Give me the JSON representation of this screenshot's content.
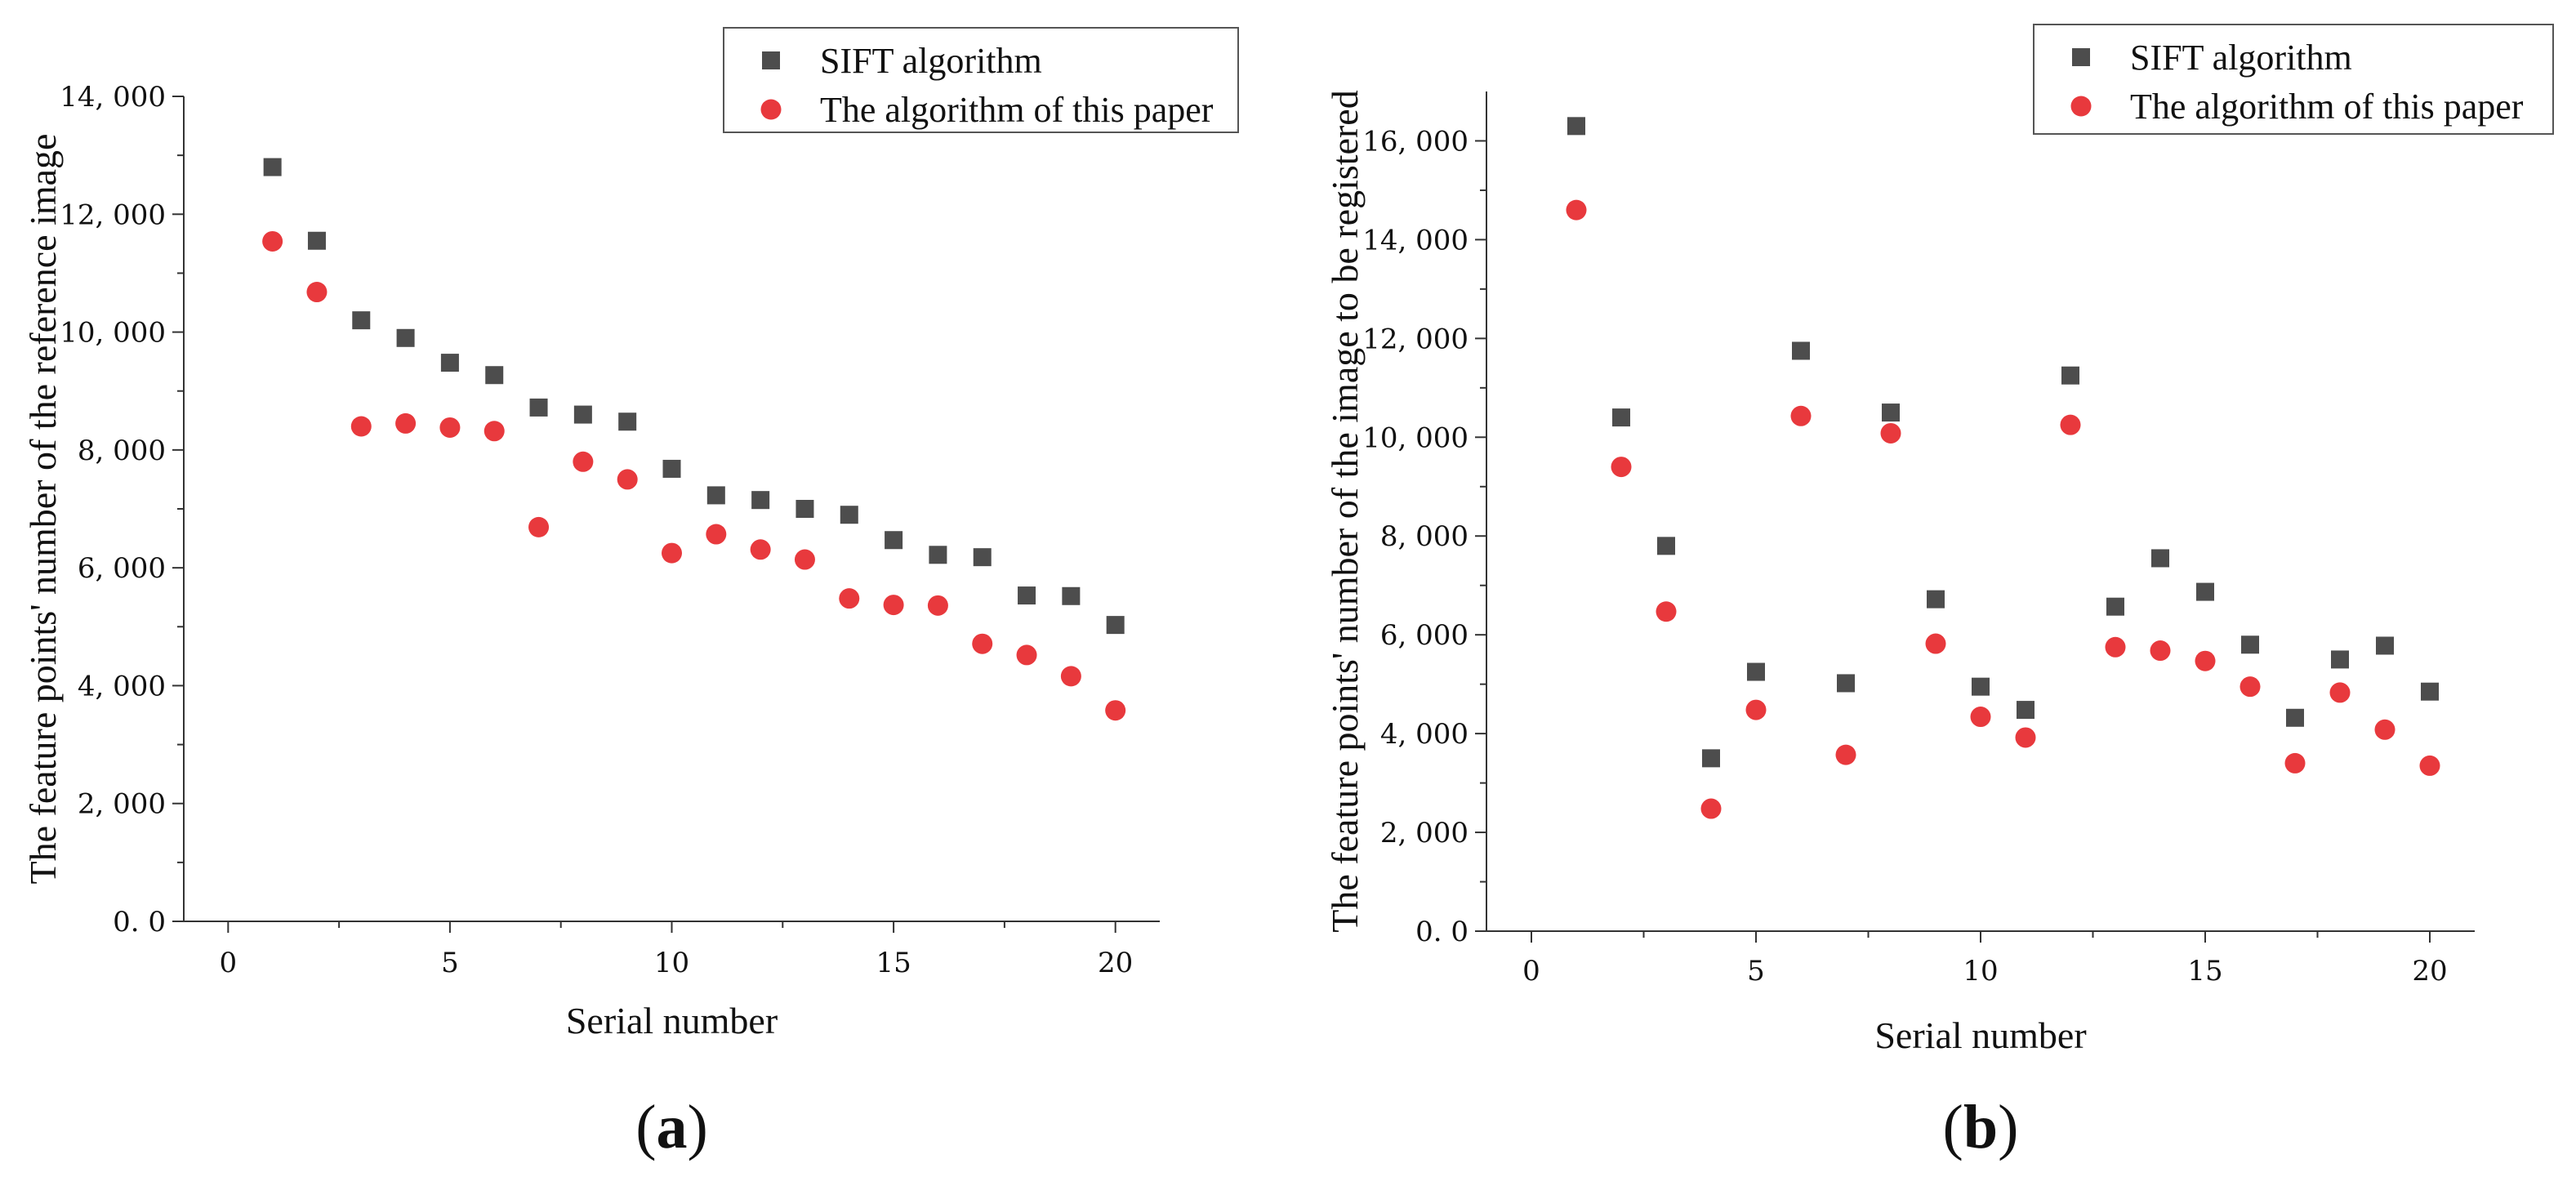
{
  "chart_data": [
    {
      "type": "scatter",
      "panel_label": "a",
      "title": "",
      "xlabel": "Serial number",
      "ylabel": "The feature points' number of the reference image",
      "xlim": [
        -1,
        21
      ],
      "ylim": [
        0,
        14000
      ],
      "x_ticks": [
        0,
        5,
        10,
        15,
        20
      ],
      "x_tick_labels": [
        "0",
        "5",
        "10",
        "15",
        "20"
      ],
      "y_ticks": [
        0,
        2000,
        4000,
        6000,
        8000,
        10000,
        12000,
        14000
      ],
      "y_tick_labels": [
        "0. 0",
        "2, 000",
        "4, 000",
        "6, 000",
        "8, 000",
        "10, 000",
        "12, 000",
        "14, 000"
      ],
      "legend_position": "top-right",
      "x": [
        1,
        2,
        3,
        4,
        5,
        6,
        7,
        8,
        9,
        10,
        11,
        12,
        13,
        14,
        15,
        16,
        17,
        18,
        19,
        20
      ],
      "series": [
        {
          "name": "SIFT algorithm",
          "marker": "square",
          "color": "#4d4d4d",
          "values": [
            12800,
            11550,
            10200,
            9900,
            9480,
            9270,
            8720,
            8600,
            8480,
            7680,
            7230,
            7150,
            7000,
            6900,
            6470,
            6220,
            6180,
            5530,
            5520,
            5030
          ]
        },
        {
          "name": "The algorithm of this paper",
          "marker": "circle",
          "color": "#e8393d",
          "values": [
            11540,
            10680,
            8400,
            8450,
            8380,
            8320,
            6690,
            7800,
            7500,
            6250,
            6570,
            6310,
            6140,
            5480,
            5370,
            5360,
            4710,
            4520,
            4160,
            3580
          ]
        }
      ]
    },
    {
      "type": "scatter",
      "panel_label": "b",
      "title": "",
      "xlabel": "Serial number",
      "ylabel": "The feature points' number of the image to be registered",
      "xlim": [
        -1,
        21
      ],
      "ylim": [
        0,
        17000
      ],
      "x_ticks": [
        0,
        5,
        10,
        15,
        20
      ],
      "x_tick_labels": [
        "0",
        "5",
        "10",
        "15",
        "20"
      ],
      "y_ticks": [
        0,
        2000,
        4000,
        6000,
        8000,
        10000,
        12000,
        14000,
        16000
      ],
      "y_tick_labels": [
        "0. 0",
        "2, 000",
        "4, 000",
        "6, 000",
        "8, 000",
        "10, 000",
        "12, 000",
        "14, 000",
        "16, 000"
      ],
      "legend_position": "top-right",
      "x": [
        1,
        2,
        3,
        4,
        5,
        6,
        7,
        8,
        9,
        10,
        11,
        12,
        13,
        14,
        15,
        16,
        17,
        18,
        19,
        20
      ],
      "series": [
        {
          "name": "SIFT algorithm",
          "marker": "square",
          "color": "#4d4d4d",
          "values": [
            16300,
            10400,
            7800,
            3500,
            5250,
            11750,
            5020,
            10500,
            6720,
            4950,
            4480,
            11250,
            6570,
            7550,
            6870,
            5800,
            4320,
            5500,
            5780,
            4850
          ]
        },
        {
          "name": "The algorithm of this paper",
          "marker": "circle",
          "color": "#e8393d",
          "values": [
            14600,
            9400,
            6470,
            2480,
            4480,
            10430,
            3570,
            10080,
            5820,
            4340,
            3920,
            10250,
            5750,
            5680,
            5470,
            4950,
            3400,
            4830,
            4080,
            3350
          ]
        }
      ]
    }
  ]
}
